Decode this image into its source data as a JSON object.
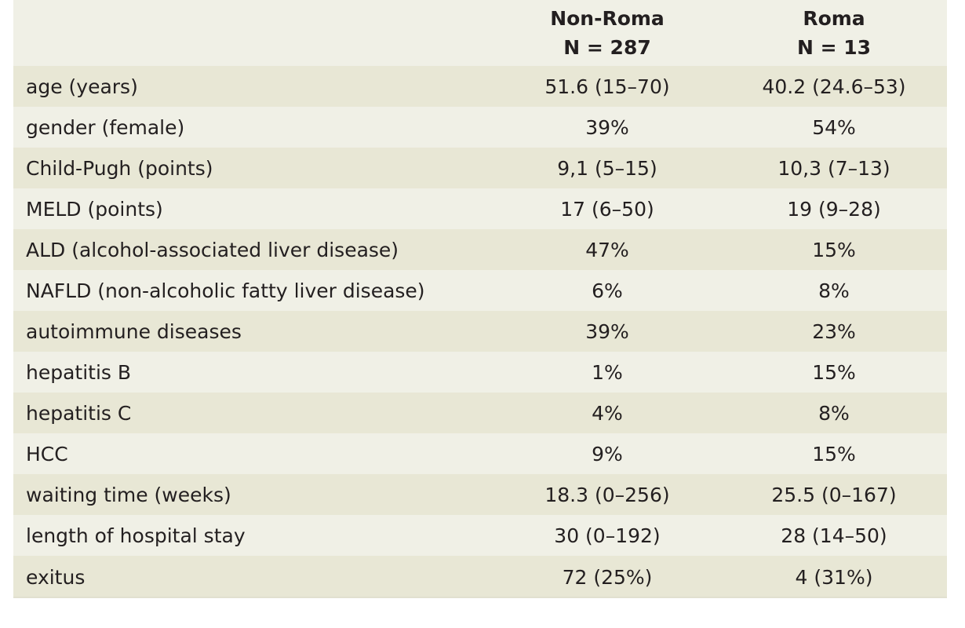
{
  "table": {
    "columns": [
      "",
      {
        "line1": "Non-Roma",
        "line2": "N = 287"
      },
      {
        "line1": "Roma",
        "line2": "N = 13"
      }
    ],
    "rows": [
      {
        "label": "age (years)",
        "non_roma": "51.6 (15–70)",
        "roma": "40.2 (24.6–53)"
      },
      {
        "label": "gender (female)",
        "non_roma": "39%",
        "roma": "54%"
      },
      {
        "label": "Child-Pugh (points)",
        "non_roma": "9,1 (5–15)",
        "roma": "10,3 (7–13)"
      },
      {
        "label": "MELD (points)",
        "non_roma": "17 (6–50)",
        "roma": "19 (9–28)"
      },
      {
        "label": "ALD (alcohol-associated liver disease)",
        "non_roma": "47%",
        "roma": "15%"
      },
      {
        "label": "NAFLD (non-alcoholic fatty liver disease)",
        "non_roma": "6%",
        "roma": "8%"
      },
      {
        "label": "autoimmune diseases",
        "non_roma": "39%",
        "roma": "23%"
      },
      {
        "label": "hepatitis B",
        "non_roma": "1%",
        "roma": "15%"
      },
      {
        "label": "hepatitis C",
        "non_roma": "4%",
        "roma": "8%"
      },
      {
        "label": "HCC",
        "non_roma": "9%",
        "roma": "15%"
      },
      {
        "label": "waiting time (weeks)",
        "non_roma": "18.3 (0–256)",
        "roma": "25.5 (0–167)"
      },
      {
        "label": "length of hospital stay",
        "non_roma": "30 (0–192)",
        "roma": "28 (14–50)"
      },
      {
        "label": "exitus",
        "non_roma": "72 (25%)",
        "roma": "4 (31%)"
      }
    ]
  },
  "colors": {
    "header_bg": "#f0f0e6",
    "row_odd_bg": "#e8e7d5",
    "row_even_bg": "#f0f0e6",
    "text": "#231f20"
  }
}
